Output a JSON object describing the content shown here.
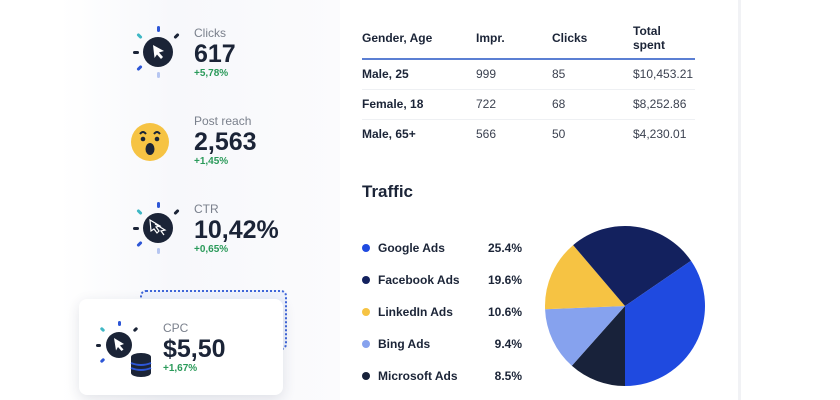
{
  "metrics": [
    {
      "label": "Clicks",
      "value": "617",
      "delta": "+5,78%",
      "icon": "cursor-click-icon"
    },
    {
      "label": "Post reach",
      "value": "2,563",
      "delta": "+1,45%",
      "icon": "surprised-emoji-icon"
    },
    {
      "label": "CTR",
      "value": "10,42%",
      "delta": "+0,65%",
      "icon": "double-cursor-icon"
    },
    {
      "label": "CPC",
      "value": "$5,50",
      "delta": "+1,67%",
      "icon": "cursor-coins-icon"
    }
  ],
  "table": {
    "headers": [
      "Gender, Age",
      "Impr.",
      "Clicks",
      "Total spent"
    ],
    "rows": [
      [
        "Male, 25",
        "999",
        "85",
        "$10,453.21"
      ],
      [
        "Female, 18",
        "722",
        "68",
        "$8,252.86"
      ],
      [
        "Male, 65+",
        "566",
        "50",
        "$4,230.01"
      ]
    ]
  },
  "chart_data": {
    "type": "pie",
    "title": "Traffic",
    "categories": [
      "Google Ads",
      "Facebook Ads",
      "LinkedIn Ads",
      "Bing Ads",
      "Microsoft Ads"
    ],
    "labels": [
      "25.4%",
      "19.6%",
      "10.6%",
      "9.4%",
      "8.5%"
    ],
    "values": [
      25.4,
      19.6,
      10.6,
      9.4,
      8.5
    ],
    "colors": [
      "#1f4ae0",
      "#13215e",
      "#f6c343",
      "#86a2ee",
      "#18223a"
    ],
    "legend": "left"
  }
}
